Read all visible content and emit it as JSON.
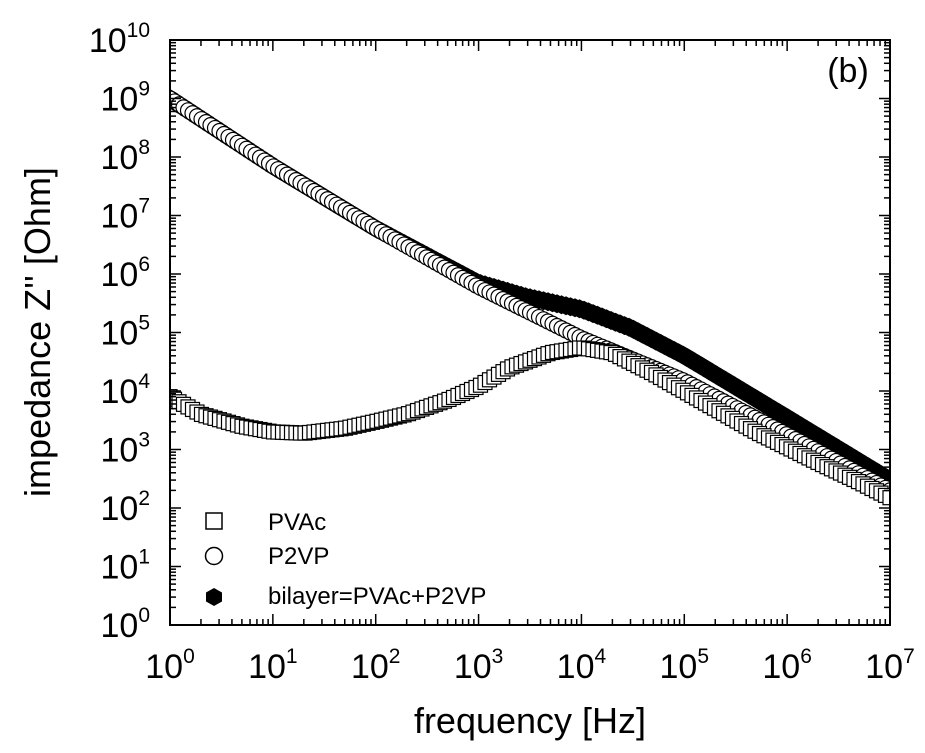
{
  "chart_data": {
    "type": "scatter",
    "panel_label": "(b)",
    "xlabel": "frequency [Hz]",
    "ylabel": "impedance Z'' [Ohm]",
    "x_scale": "log",
    "y_scale": "log",
    "xlim": [
      1,
      10000000
    ],
    "ylim": [
      1,
      10000000000
    ],
    "x_ticks": [
      {
        "base": "10",
        "exp": "0"
      },
      {
        "base": "10",
        "exp": "1"
      },
      {
        "base": "10",
        "exp": "2"
      },
      {
        "base": "10",
        "exp": "3"
      },
      {
        "base": "10",
        "exp": "4"
      },
      {
        "base": "10",
        "exp": "5"
      },
      {
        "base": "10",
        "exp": "6"
      },
      {
        "base": "10",
        "exp": "7"
      }
    ],
    "y_ticks": [
      {
        "base": "10",
        "exp": "0"
      },
      {
        "base": "10",
        "exp": "1"
      },
      {
        "base": "10",
        "exp": "2"
      },
      {
        "base": "10",
        "exp": "3"
      },
      {
        "base": "10",
        "exp": "4"
      },
      {
        "base": "10",
        "exp": "5"
      },
      {
        "base": "10",
        "exp": "6"
      },
      {
        "base": "10",
        "exp": "7"
      },
      {
        "base": "10",
        "exp": "8"
      },
      {
        "base": "10",
        "exp": "9"
      },
      {
        "base": "10",
        "exp": "10"
      }
    ],
    "legend_position": "bottom-left",
    "grid": false,
    "series": [
      {
        "name": "PVAc",
        "marker": "open-square",
        "x": [
          1,
          2,
          5,
          10,
          20,
          50,
          100,
          200,
          500,
          1000,
          2000,
          5000,
          10000,
          20000,
          50000,
          100000,
          200000,
          500000,
          1000000,
          2000000,
          5000000,
          10000000
        ],
        "y": [
          8000,
          4000,
          2500,
          2000,
          1900,
          2300,
          3000,
          4000,
          7000,
          12000,
          25000,
          45000,
          55000,
          45000,
          20000,
          10000,
          5000,
          2000,
          1100,
          600,
          280,
          150
        ]
      },
      {
        "name": "P2VP",
        "marker": "open-circle",
        "x": [
          1,
          10,
          100,
          1000,
          10000,
          100000,
          1000000,
          10000000
        ],
        "y": [
          1000000000,
          70000000,
          6000000,
          600000,
          80000,
          15000,
          1800,
          200
        ]
      },
      {
        "name": "bilayer=PVAc+P2VP",
        "marker": "filled-hexagon",
        "x": [
          1,
          10,
          100,
          1000,
          3000,
          10000,
          30000,
          100000,
          1000000,
          10000000
        ],
        "y": [
          1000000000,
          70000000,
          6000000,
          700000,
          400000,
          250000,
          120000,
          40000,
          3500,
          300
        ]
      }
    ]
  }
}
